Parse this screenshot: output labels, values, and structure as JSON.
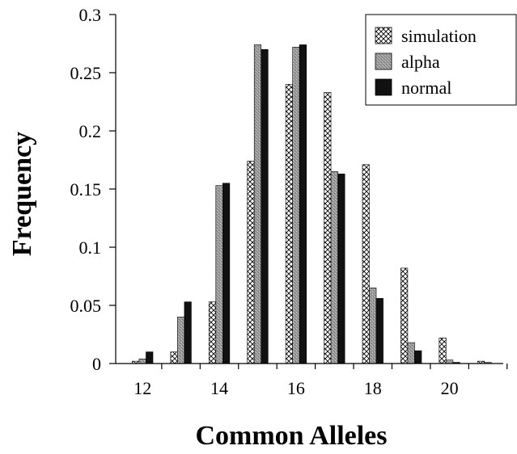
{
  "chart_data": {
    "type": "bar",
    "xlabel": "Common Alleles",
    "ylabel": "Frequency",
    "categories": [
      12,
      13,
      14,
      15,
      16,
      17,
      18,
      19,
      20,
      21
    ],
    "x_tick_labels": [
      "12",
      "14",
      "16",
      "18",
      "20"
    ],
    "y_tick_labels": [
      "0",
      "0.05",
      "0.1",
      "0.15",
      "0.2",
      "0.25",
      "0.3"
    ],
    "ylim": [
      0,
      0.3
    ],
    "xlim": [
      11.3,
      21.4
    ],
    "grid": false,
    "legend_position": "top-right",
    "series": [
      {
        "name": "simulation",
        "pattern": "crosshatch",
        "values": [
          0.002,
          0.01,
          0.053,
          0.174,
          0.24,
          0.233,
          0.171,
          0.082,
          0.022,
          0.002
        ]
      },
      {
        "name": "alpha",
        "pattern": "gray-stipple",
        "values": [
          0.004,
          0.04,
          0.153,
          0.274,
          0.272,
          0.165,
          0.065,
          0.018,
          0.003,
          0.001
        ]
      },
      {
        "name": "normal",
        "pattern": "black",
        "values": [
          0.01,
          0.053,
          0.155,
          0.27,
          0.274,
          0.163,
          0.056,
          0.011,
          0.001,
          0.0
        ]
      }
    ]
  }
}
